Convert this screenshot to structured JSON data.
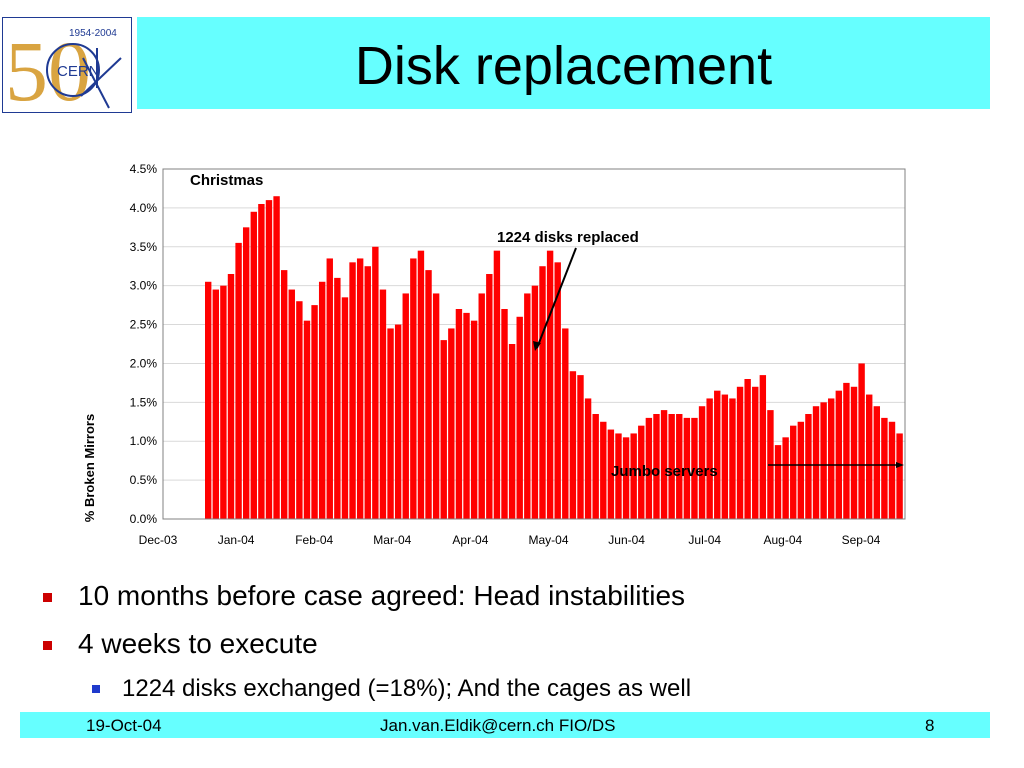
{
  "slide": {
    "title": "Disk replacement",
    "logo": {
      "text": "CERN",
      "years": "1954-2004",
      "numeral": "50"
    }
  },
  "chart_data": {
    "type": "bar",
    "ylabel": "% Broken Mirrors",
    "xlabel": "",
    "ylim": [
      0,
      4.5
    ],
    "yticks": [
      "0.0%",
      "0.5%",
      "1.0%",
      "1.5%",
      "2.0%",
      "2.5%",
      "3.0%",
      "3.5%",
      "4.0%",
      "4.5%"
    ],
    "xticks": [
      "Dec-03",
      "Jan-04",
      "Feb-04",
      "Mar-04",
      "Apr-04",
      "May-04",
      "Jun-04",
      "Jul-04",
      "Aug-04",
      "Sep-04"
    ],
    "grid": true,
    "color": "#ff0000",
    "values": [
      3.05,
      2.95,
      3.0,
      3.15,
      3.55,
      3.75,
      3.95,
      4.05,
      4.1,
      4.15,
      3.2,
      2.95,
      2.8,
      2.55,
      2.75,
      3.05,
      3.35,
      3.1,
      2.85,
      3.3,
      3.35,
      3.25,
      3.5,
      2.95,
      2.45,
      2.5,
      2.9,
      3.35,
      3.45,
      3.2,
      2.9,
      2.3,
      2.45,
      2.7,
      2.65,
      2.55,
      2.9,
      3.15,
      3.45,
      2.7,
      2.25,
      2.6,
      2.9,
      3.0,
      3.25,
      3.45,
      3.3,
      2.45,
      1.9,
      1.85,
      1.55,
      1.35,
      1.25,
      1.15,
      1.1,
      1.05,
      1.1,
      1.2,
      1.3,
      1.35,
      1.4,
      1.35,
      1.35,
      1.3,
      1.3,
      1.45,
      1.55,
      1.65,
      1.6,
      1.55,
      1.7,
      1.8,
      1.7,
      1.85,
      1.4,
      0.95,
      1.05,
      1.2,
      1.25,
      1.35,
      1.45,
      1.5,
      1.55,
      1.65,
      1.75,
      1.7,
      2.0,
      1.6,
      1.45,
      1.3,
      1.25,
      1.1
    ]
  },
  "annotations": {
    "christmas": "Christmas",
    "disks_replaced": "1224 disks replaced",
    "jumbo_servers": "Jumbo servers"
  },
  "bullets": [
    {
      "level": 1,
      "text": "10 months before case agreed: Head instabilities"
    },
    {
      "level": 1,
      "text": "4 weeks to execute"
    },
    {
      "level": 2,
      "text": "1224 disks exchanged (=18%); And the cages as well"
    }
  ],
  "footer": {
    "date": "19-Oct-04",
    "author": "Jan.van.Eldik@cern.ch FIO/DS",
    "page": "8"
  }
}
